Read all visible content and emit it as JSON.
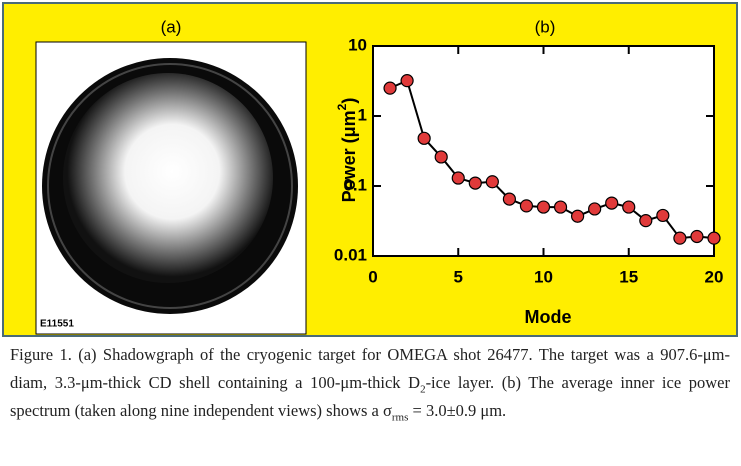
{
  "figure": {
    "panel_a_label": "(a)",
    "id_label": "E11551",
    "caption": [
      "Figure 1. (a) Shadowgraph of the cryogenic target for OMEGA shot 26477. The target was a 907.6-μm-diam, 3.3-μm-thick CD shell containing a 100-μm-thick D",
      "2",
      "-ice layer. (b) The average inner ice power spectrum (taken along nine independent views) shows a σ",
      "rms",
      " = 3.0±0.9 μm."
    ]
  },
  "chart_data": {
    "type": "line",
    "title": "(b)",
    "xlabel": "Mode",
    "ylabel": [
      "Power (μm",
      "2",
      ")"
    ],
    "x": [
      1,
      2,
      3,
      4,
      5,
      6,
      7,
      8,
      9,
      10,
      11,
      12,
      13,
      14,
      15,
      16,
      17,
      18,
      19,
      20
    ],
    "values": [
      2.5,
      3.2,
      0.48,
      0.26,
      0.13,
      0.11,
      0.115,
      0.065,
      0.052,
      0.05,
      0.05,
      0.037,
      0.047,
      0.057,
      0.05,
      0.032,
      0.038,
      0.018,
      0.019,
      0.018
    ],
    "color": "#000000",
    "marker_color": "#e03a3a",
    "xlim": [
      0,
      20
    ],
    "xticks": [
      0,
      5,
      10,
      15,
      20
    ],
    "ylim": [
      0.01,
      10
    ],
    "yticks": [
      0.01,
      0.1,
      1,
      10
    ],
    "log_y": true
  }
}
